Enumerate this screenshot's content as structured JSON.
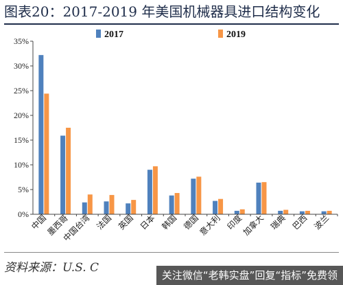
{
  "header": {
    "title": "图表20：2017-2019 年美国机械器具进口结构变化"
  },
  "footer": {
    "source": "资料来源：U.S. C",
    "watermark": "关注微信“老韩实盘”回复“指标”免费领"
  },
  "colors": {
    "series_2017": "#4f81bd",
    "series_2019": "#f79646",
    "title": "#1f2d4a"
  },
  "chart_data": {
    "type": "bar",
    "title": "",
    "xlabel": "",
    "ylabel": "",
    "categories": [
      "中国",
      "墨西哥",
      "中国台湾",
      "法国",
      "英国",
      "日本",
      "韩国",
      "德国",
      "意大利",
      "印度",
      "加拿大",
      "瑞典",
      "巴西",
      "波兰"
    ],
    "series": [
      {
        "name": "2017",
        "values": [
          32.2,
          15.9,
          2.4,
          2.6,
          2.2,
          9.0,
          3.8,
          7.2,
          2.7,
          0.7,
          6.4,
          0.7,
          0.6,
          0.6
        ]
      },
      {
        "name": "2019",
        "values": [
          24.4,
          17.5,
          4.0,
          3.9,
          2.9,
          9.7,
          4.3,
          7.6,
          3.1,
          1.0,
          6.5,
          0.9,
          0.7,
          0.7
        ]
      }
    ],
    "ylim": [
      0,
      35
    ],
    "yticks": [
      "0%",
      "5%",
      "10%",
      "15%",
      "20%",
      "25%",
      "30%",
      "35%"
    ],
    "ytick_values": [
      0,
      5,
      10,
      15,
      20,
      25,
      30,
      35
    ],
    "legend_position": "top",
    "grid": false
  }
}
